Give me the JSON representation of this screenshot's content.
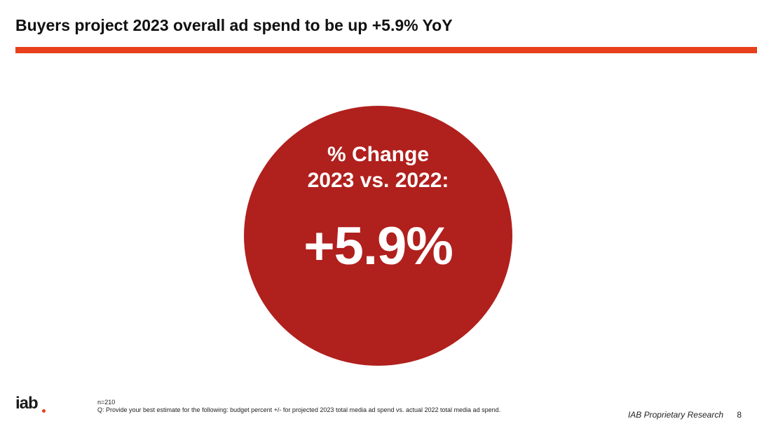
{
  "slide": {
    "title": "Buyers project 2023 overall ad spend to be up +5.9% YoY"
  },
  "highlight": {
    "heading_line1": "% Change",
    "heading_line2": "2023 vs. 2022:",
    "value": "+5.9%"
  },
  "footer": {
    "logo_text": "iab",
    "sample_size": "n=210",
    "question": "Q: Provide your best estimate for the following: budget percent +/- for projected 2023 total media ad spend vs. actual 2022 total media ad spend.",
    "credit": "IAB Proprietary Research",
    "page_number": "8"
  },
  "colors": {
    "accent_rule": "#e8401c",
    "circle_fill": "#b0201d",
    "logo_dot": "#e8401c"
  }
}
